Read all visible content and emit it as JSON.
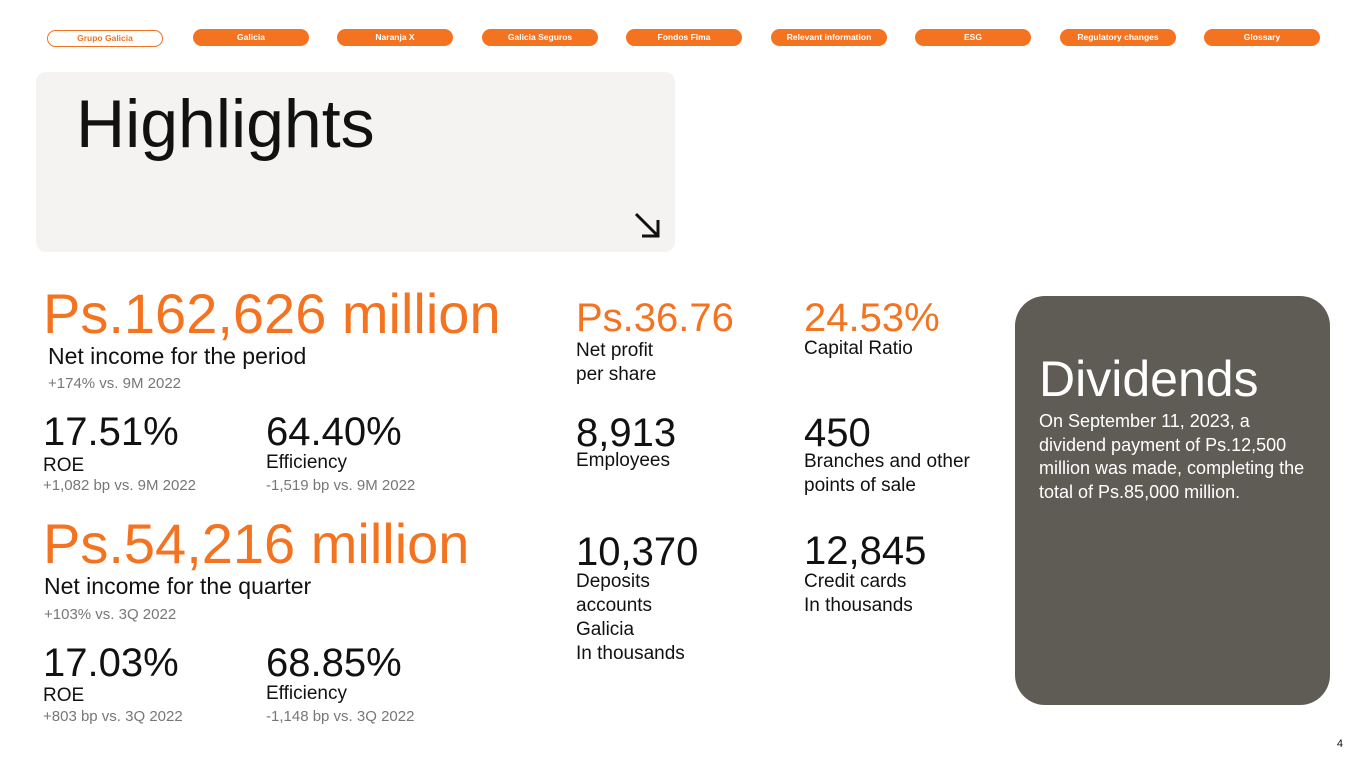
{
  "nav": {
    "tabs": [
      {
        "label": "Grupo Galicia",
        "active": true
      },
      {
        "label": "Galicia"
      },
      {
        "label": "Naranja X"
      },
      {
        "label": "Galicia Seguros"
      },
      {
        "label": "Fondos Fima"
      },
      {
        "label": "Relevant information"
      },
      {
        "label": "ESG"
      },
      {
        "label": "Regulatory changes"
      },
      {
        "label": "Glossary"
      }
    ]
  },
  "header": {
    "title": "Highlights",
    "arrow_icon": "arrow-down-right-icon"
  },
  "period": {
    "net_income_value": "Ps.162,626 million",
    "net_income_label": "Net income for the period",
    "net_income_change": "+174% vs. 9M 2022",
    "roe_value": "17.51%",
    "roe_label": "ROE",
    "roe_change": "+1,082 bp vs. 9M 2022",
    "efficiency_value": "64.40%",
    "efficiency_label": "Efficiency",
    "efficiency_change": "-1,519 bp vs. 9M 2022"
  },
  "quarter": {
    "net_income_value": "Ps.54,216 million",
    "net_income_label": "Net income for the quarter",
    "net_income_change": "+103% vs. 3Q 2022",
    "roe_value": "17.03%",
    "roe_label": "ROE",
    "roe_change": "+803 bp vs. 3Q 2022",
    "efficiency_value": "68.85%",
    "efficiency_label": "Efficiency",
    "efficiency_change": "-1,148 bp vs. 3Q 2022"
  },
  "stats": {
    "eps_value": "Ps.36.76",
    "eps_label_1": "Net profit",
    "eps_label_2": "per share",
    "capital_value": "24.53%",
    "capital_label": "Capital Ratio",
    "employees_value": "8,913",
    "employees_label": "Employees",
    "branches_value": "450",
    "branches_label_1": "Branches and other",
    "branches_label_2": "points of sale",
    "deposits_value": "10,370",
    "deposits_label_1": "Deposits",
    "deposits_label_2": "accounts",
    "deposits_label_3": "Galicia",
    "deposits_label_4": "In thousands",
    "cards_value": "12,845",
    "cards_label_1": "Credit cards",
    "cards_label_2": "In thousands"
  },
  "dividends": {
    "title": "Dividends",
    "text": "On September 11, 2023, a dividend payment of Ps.12,500 million was made, completing the total of Ps.85,000 million."
  },
  "footer": {
    "page_number": "4"
  },
  "colors": {
    "accent": "#f47320",
    "card": "#5e5c55",
    "panel": "#f4f3f1"
  }
}
